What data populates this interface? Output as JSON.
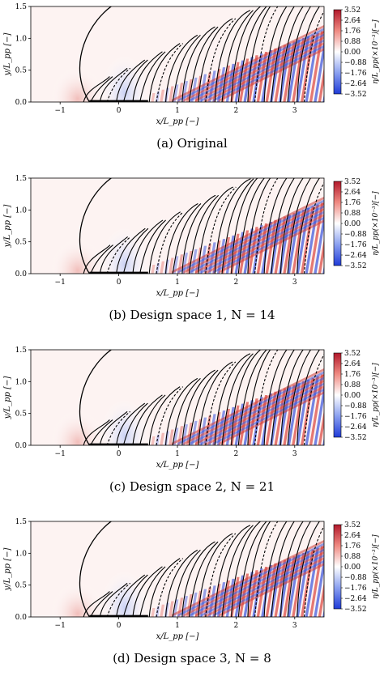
{
  "figure": {
    "colorbar_ticks": [
      "3.52",
      "2.64",
      "1.76",
      "0.88",
      "0.00",
      "−0.88",
      "−1.76",
      "−2.64",
      "−3.52"
    ],
    "colorbar_label": "η/L_pp(×10⁻³)[−]",
    "x_label": "x/L_pp [−]",
    "y_label": "y/L_pp [−]",
    "x_ticks": [
      "−1",
      "0",
      "1",
      "2",
      "3"
    ],
    "y_ticks": [
      "0.0",
      "0.5",
      "1.0",
      "1.5"
    ],
    "colors": {
      "positive": "#d7191c",
      "negative": "#2c4fd6",
      "zero": "#ffffff",
      "contour": "#000000"
    }
  },
  "panels": [
    {
      "id": "a",
      "caption": "(a) Original"
    },
    {
      "id": "b",
      "caption": "(b) Design space 1, N = 14"
    },
    {
      "id": "c",
      "caption": "(c) Design space 2, N = 21"
    },
    {
      "id": "d",
      "caption": "(d) Design space 3, N = 8"
    }
  ]
}
